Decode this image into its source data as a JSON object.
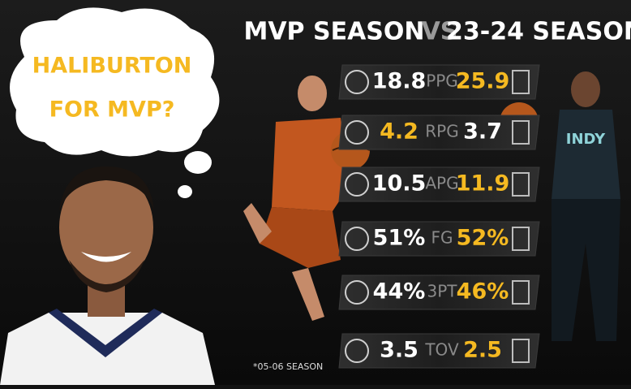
{
  "bubble": {
    "line1": "HALIBURTON",
    "line2": "FOR MVP?"
  },
  "header": {
    "left": "MVP SEASON",
    "vs": "VS",
    "right": "23-24 SEASON"
  },
  "pacers_jersey": "INDY",
  "rows": [
    {
      "stat": "PPG",
      "left": "18.8",
      "right": "25.9"
    },
    {
      "stat": "RPG",
      "left": "4.2",
      "right": "3.7"
    },
    {
      "stat": "APG",
      "left": "10.5",
      "right": "11.9"
    },
    {
      "stat": "FG",
      "left": "51%",
      "right": "52%"
    },
    {
      "stat": "3PT",
      "left": "44%",
      "right": "46%"
    },
    {
      "stat": "TOV",
      "left": "3.5",
      "right": "2.5"
    }
  ],
  "footnote": "*05-06 SEASON"
}
